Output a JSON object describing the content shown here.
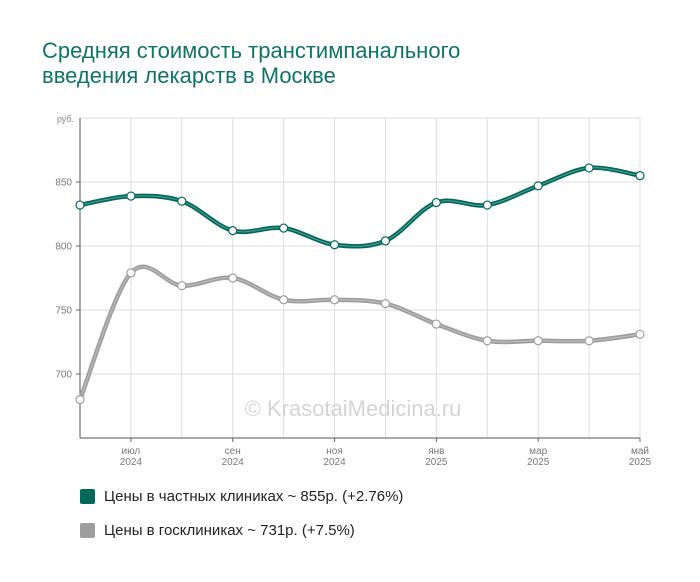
{
  "chart_data": {
    "type": "line",
    "title": "Средняя стоимость транстимпанального введения лекарств в Москве",
    "y_unit_label": "руб.",
    "watermark": "© KrasotaiMedicina.ru",
    "categories": [
      null,
      "июл 2024",
      null,
      "сен 2024",
      null,
      "ноя 2024",
      null,
      "янв 2025",
      null,
      "мар 2025",
      null,
      "май 2025"
    ],
    "series": [
      {
        "name": "Цены в частных клиниках ~ 855р. (+2.76%)",
        "color": "#00695c",
        "values": [
          832,
          839,
          835,
          812,
          814,
          801,
          804,
          834,
          832,
          847,
          861,
          855
        ]
      },
      {
        "name": "Цены в госклиниках ~ 731р. (+7.5%)",
        "color": "#9e9e9e",
        "values": [
          680,
          779,
          769,
          775,
          758,
          758,
          755,
          739,
          726,
          726,
          726,
          731
        ]
      }
    ],
    "ylim": [
      650,
      900
    ],
    "yticks": [
      700,
      750,
      800,
      850
    ],
    "grid": true
  }
}
